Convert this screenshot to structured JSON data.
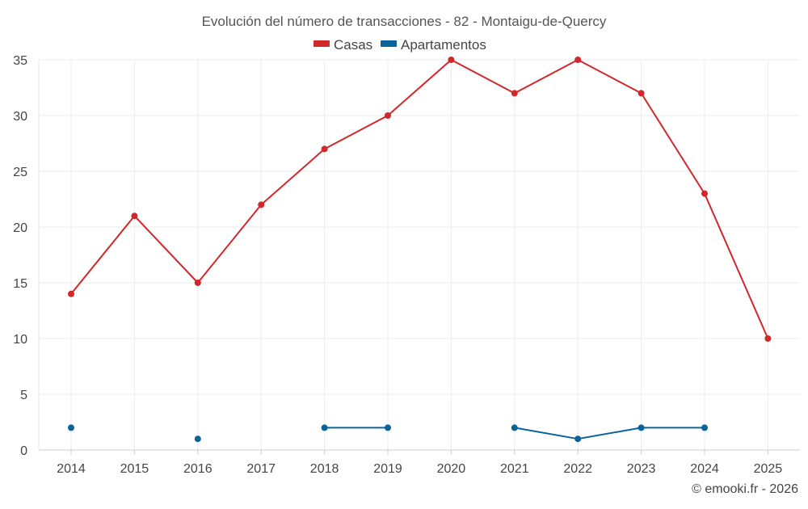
{
  "chart_data": {
    "type": "line",
    "title": "Evolución del número de transacciones - 82 - Montaigu-de-Quercy",
    "xlabel": "",
    "ylabel": "",
    "categories": [
      "2014",
      "2015",
      "2016",
      "2017",
      "2018",
      "2019",
      "2020",
      "2021",
      "2022",
      "2023",
      "2024",
      "2025"
    ],
    "ylim": [
      0,
      35
    ],
    "yticks": [
      0,
      5,
      10,
      15,
      20,
      25,
      30,
      35
    ],
    "grid": true,
    "legend_position": "top-center",
    "series": [
      {
        "name": "Casas",
        "color": "#d0282b",
        "values": [
          14,
          21,
          15,
          22,
          27,
          30,
          35,
          32,
          35,
          32,
          23,
          10
        ]
      },
      {
        "name": "Apartamentos",
        "color": "#0a6399",
        "values": [
          2,
          null,
          1,
          null,
          2,
          2,
          null,
          2,
          1,
          2,
          2,
          null
        ]
      }
    ],
    "credit": "© emooki.fr - 2026"
  }
}
